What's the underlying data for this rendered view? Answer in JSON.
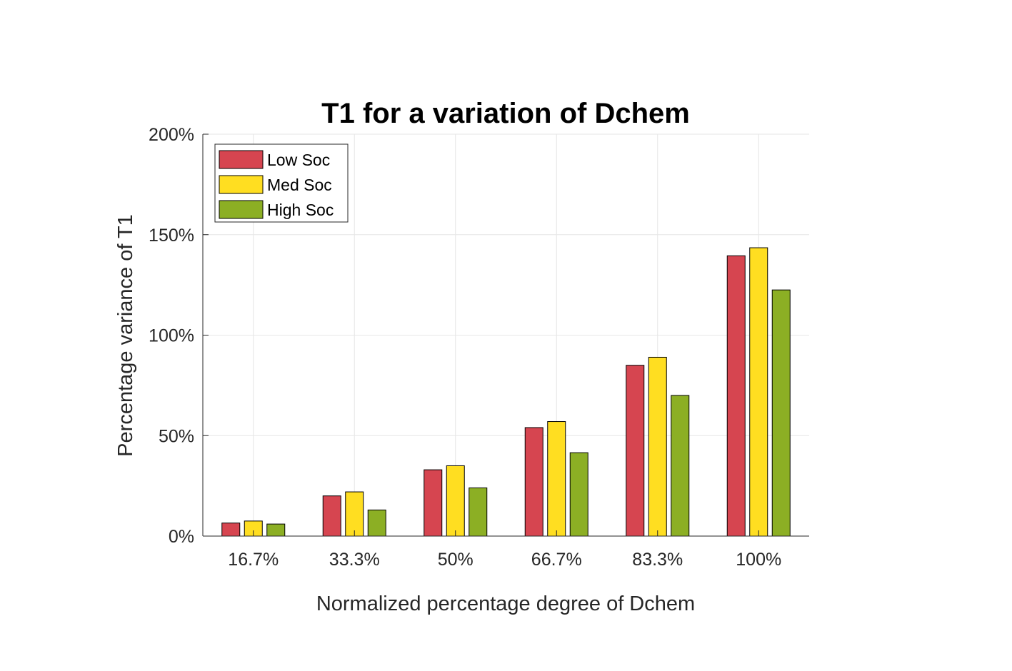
{
  "chart_data": {
    "type": "bar",
    "title": "T1 for a variation of Dchem",
    "xlabel": "Normalized percentage degree of Dchem",
    "ylabel": "Percentage variance of T1",
    "categories": [
      "16.7%",
      "33.3%",
      "50%",
      "66.7%",
      "83.3%",
      "100%"
    ],
    "series": [
      {
        "name": "Low Soc",
        "color": "#D64550",
        "values": [
          6.5,
          20,
          33,
          54,
          85,
          139.5
        ]
      },
      {
        "name": "Med Soc",
        "color": "#FFDE21",
        "values": [
          7.5,
          22,
          35,
          57,
          89,
          143.5
        ]
      },
      {
        "name": "High Soc",
        "color": "#8CAF24",
        "values": [
          6,
          13,
          24,
          41.5,
          70,
          122.5
        ]
      }
    ],
    "ylim": [
      0,
      200
    ],
    "yticks": [
      0,
      50,
      100,
      150,
      200
    ],
    "ytick_labels": [
      "0%",
      "50%",
      "100%",
      "150%",
      "200%"
    ],
    "grid": true,
    "legend_position": "top-left"
  }
}
